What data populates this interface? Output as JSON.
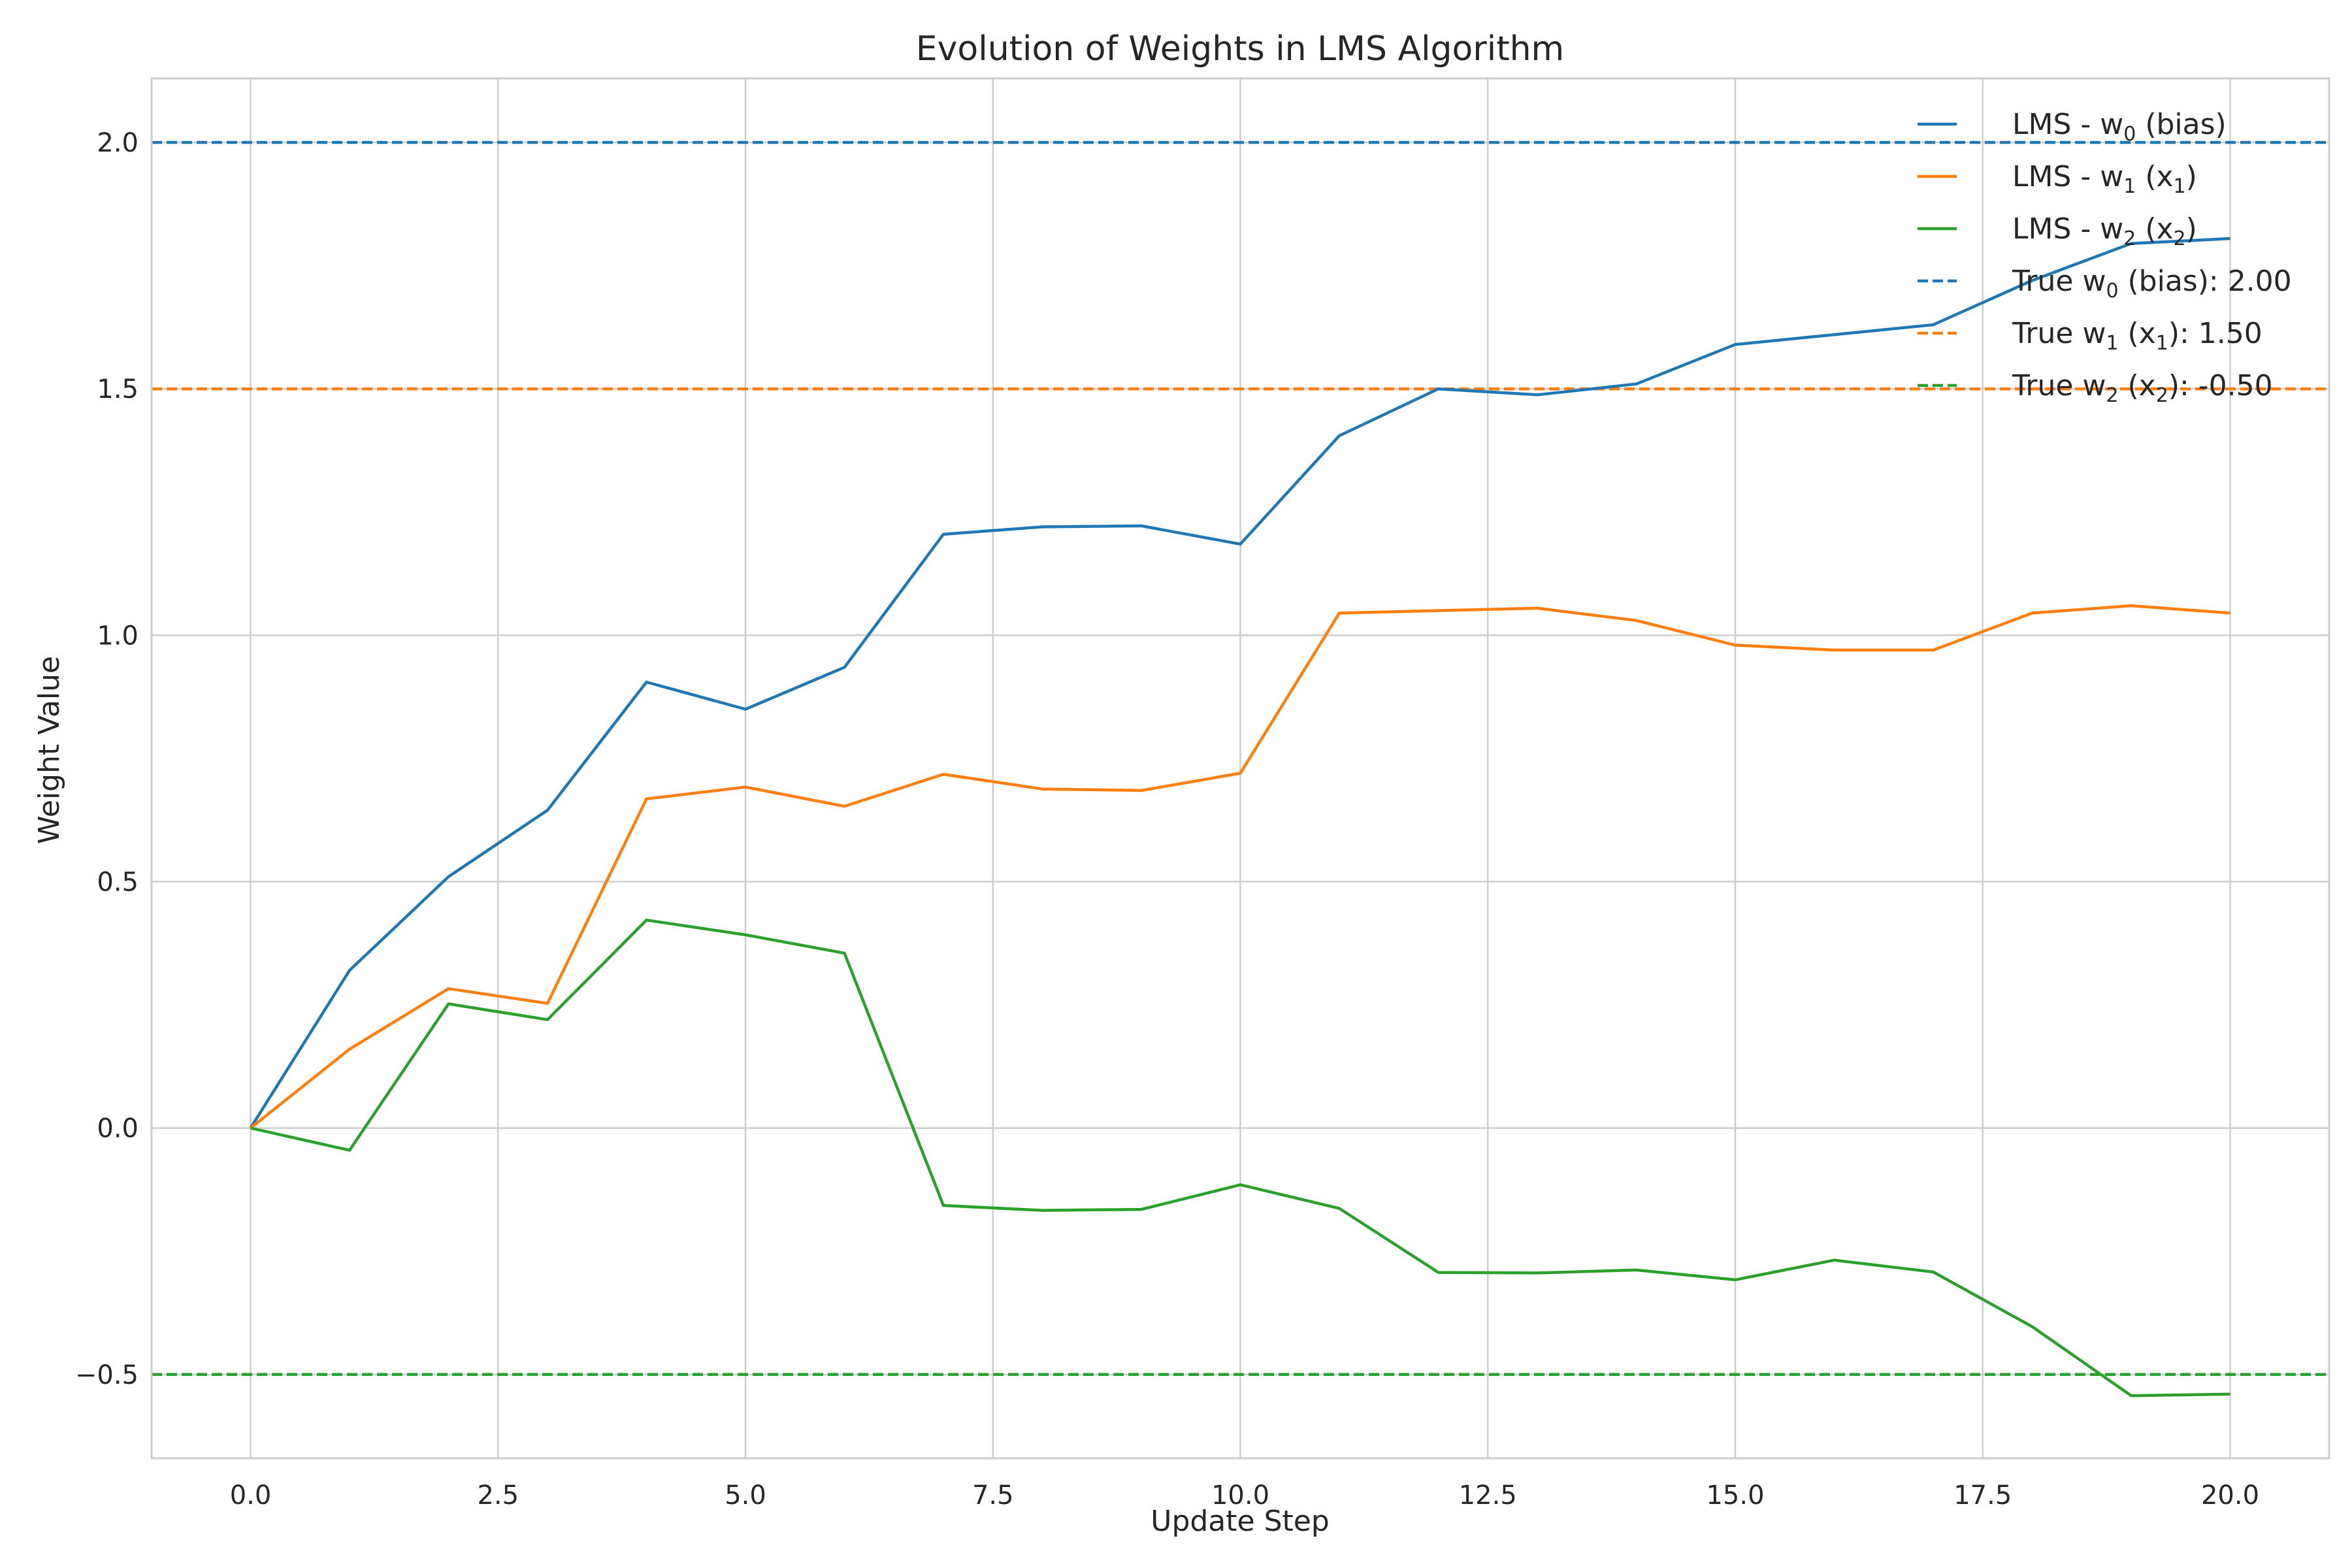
{
  "chart_data": {
    "type": "line",
    "title": "Evolution of Weights in LMS Algorithm",
    "xlabel": "Update Step",
    "ylabel": "Weight Value",
    "xlim": [
      -1,
      21
    ],
    "ylim": [
      -0.67,
      2.13
    ],
    "grid": true,
    "legend_position": "top-right",
    "x_ticks": [
      "0.0",
      "2.5",
      "5.0",
      "7.5",
      "10.0",
      "12.5",
      "15.0",
      "17.5",
      "20.0"
    ],
    "x_tick_values": [
      0,
      2.5,
      5,
      7.5,
      10,
      12.5,
      15,
      17.5,
      20
    ],
    "y_ticks": [
      "−0.5",
      "0.0",
      "0.5",
      "1.0",
      "1.5",
      "2.0"
    ],
    "y_tick_values": [
      -0.5,
      0,
      0.5,
      1.0,
      1.5,
      2.0
    ],
    "x": [
      0,
      1,
      2,
      3,
      4,
      5,
      6,
      7,
      8,
      9,
      10,
      11,
      12,
      13,
      14,
      15,
      16,
      17,
      18,
      19,
      20
    ],
    "series": [
      {
        "label_parts": [
          "LMS - w",
          "0",
          " (bias)"
        ],
        "color": "#1f77b4",
        "style": "solid",
        "values": [
          0.0,
          0.32,
          0.51,
          0.645,
          0.905,
          0.85,
          0.935,
          1.205,
          1.22,
          1.222,
          1.185,
          1.405,
          1.5,
          1.488,
          1.51,
          1.59,
          1.61,
          1.63,
          1.72,
          1.795,
          1.805
        ]
      },
      {
        "label_parts": [
          "LMS - w",
          "1",
          " (x",
          "1",
          ")"
        ],
        "color": "#ff7f0e",
        "style": "solid",
        "values": [
          0.0,
          0.16,
          0.283,
          0.253,
          0.668,
          0.692,
          0.653,
          0.718,
          0.688,
          0.685,
          0.72,
          1.045,
          1.05,
          1.055,
          1.03,
          0.98,
          0.97,
          0.97,
          1.045,
          1.06,
          1.045
        ]
      },
      {
        "label_parts": [
          "LMS - w",
          "2",
          " (x",
          "2",
          ")"
        ],
        "color": "#2ca02c",
        "style": "solid",
        "values": [
          0.0,
          -0.045,
          0.252,
          0.22,
          0.422,
          0.392,
          0.355,
          -0.157,
          -0.167,
          -0.165,
          -0.115,
          -0.163,
          -0.293,
          -0.294,
          -0.288,
          -0.308,
          -0.268,
          -0.292,
          -0.403,
          -0.543,
          -0.54
        ]
      }
    ],
    "reference_lines": [
      {
        "label_parts": [
          "True w",
          "0",
          " (bias): 2.00"
        ],
        "color": "#1f77b4",
        "style": "dashed",
        "y": 2.0
      },
      {
        "label_parts": [
          "True w",
          "1",
          " (x",
          "1",
          "): 1.50"
        ],
        "color": "#ff7f0e",
        "style": "dashed",
        "y": 1.5
      },
      {
        "label_parts": [
          "True w",
          "2",
          " (x",
          "2",
          "): -0.50"
        ],
        "color": "#2ca02c",
        "style": "dashed",
        "y": -0.5
      }
    ]
  }
}
